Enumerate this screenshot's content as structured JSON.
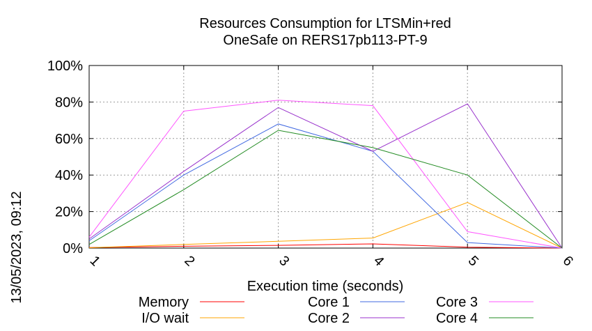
{
  "chart_data": {
    "type": "line",
    "title": "Resources Consumption for LTSMin+red",
    "subtitle": "OneSafe on RERS17pb113-PT-9",
    "xlabel": "Execution time (seconds)",
    "ylabel": "",
    "timestamp": "13/05/2023, 09:12",
    "x": [
      1,
      2,
      3,
      4,
      5,
      6
    ],
    "xlim": [
      1,
      6
    ],
    "ylim": [
      0,
      100
    ],
    "x_ticks": [
      "1",
      "2",
      "3",
      "4",
      "5",
      "6"
    ],
    "y_ticks": [
      "0%",
      "20%",
      "40%",
      "60%",
      "80%",
      "100%"
    ],
    "grid": true,
    "legend_position": "bottom",
    "series": [
      {
        "name": "Memory",
        "color": "#ff0000",
        "values": [
          0.3,
          1.0,
          1.5,
          2.3,
          0.5,
          0
        ]
      },
      {
        "name": "I/O wait",
        "color": "#ffa500",
        "values": [
          0.2,
          2.0,
          3.7,
          5.5,
          25.0,
          0
        ]
      },
      {
        "name": "Core 1",
        "color": "#4169e1",
        "values": [
          4.0,
          40.0,
          68.0,
          53.0,
          3.0,
          0
        ]
      },
      {
        "name": "Core 2",
        "color": "#9932cc",
        "values": [
          5.0,
          42.0,
          77.0,
          53.0,
          79.0,
          0
        ]
      },
      {
        "name": "Core 3",
        "color": "#ff55ff",
        "values": [
          6.0,
          75.0,
          81.0,
          78.0,
          9.0,
          0
        ]
      },
      {
        "name": "Core 4",
        "color": "#228b22",
        "values": [
          2.0,
          32.0,
          64.5,
          55.0,
          40.0,
          0
        ]
      }
    ]
  }
}
